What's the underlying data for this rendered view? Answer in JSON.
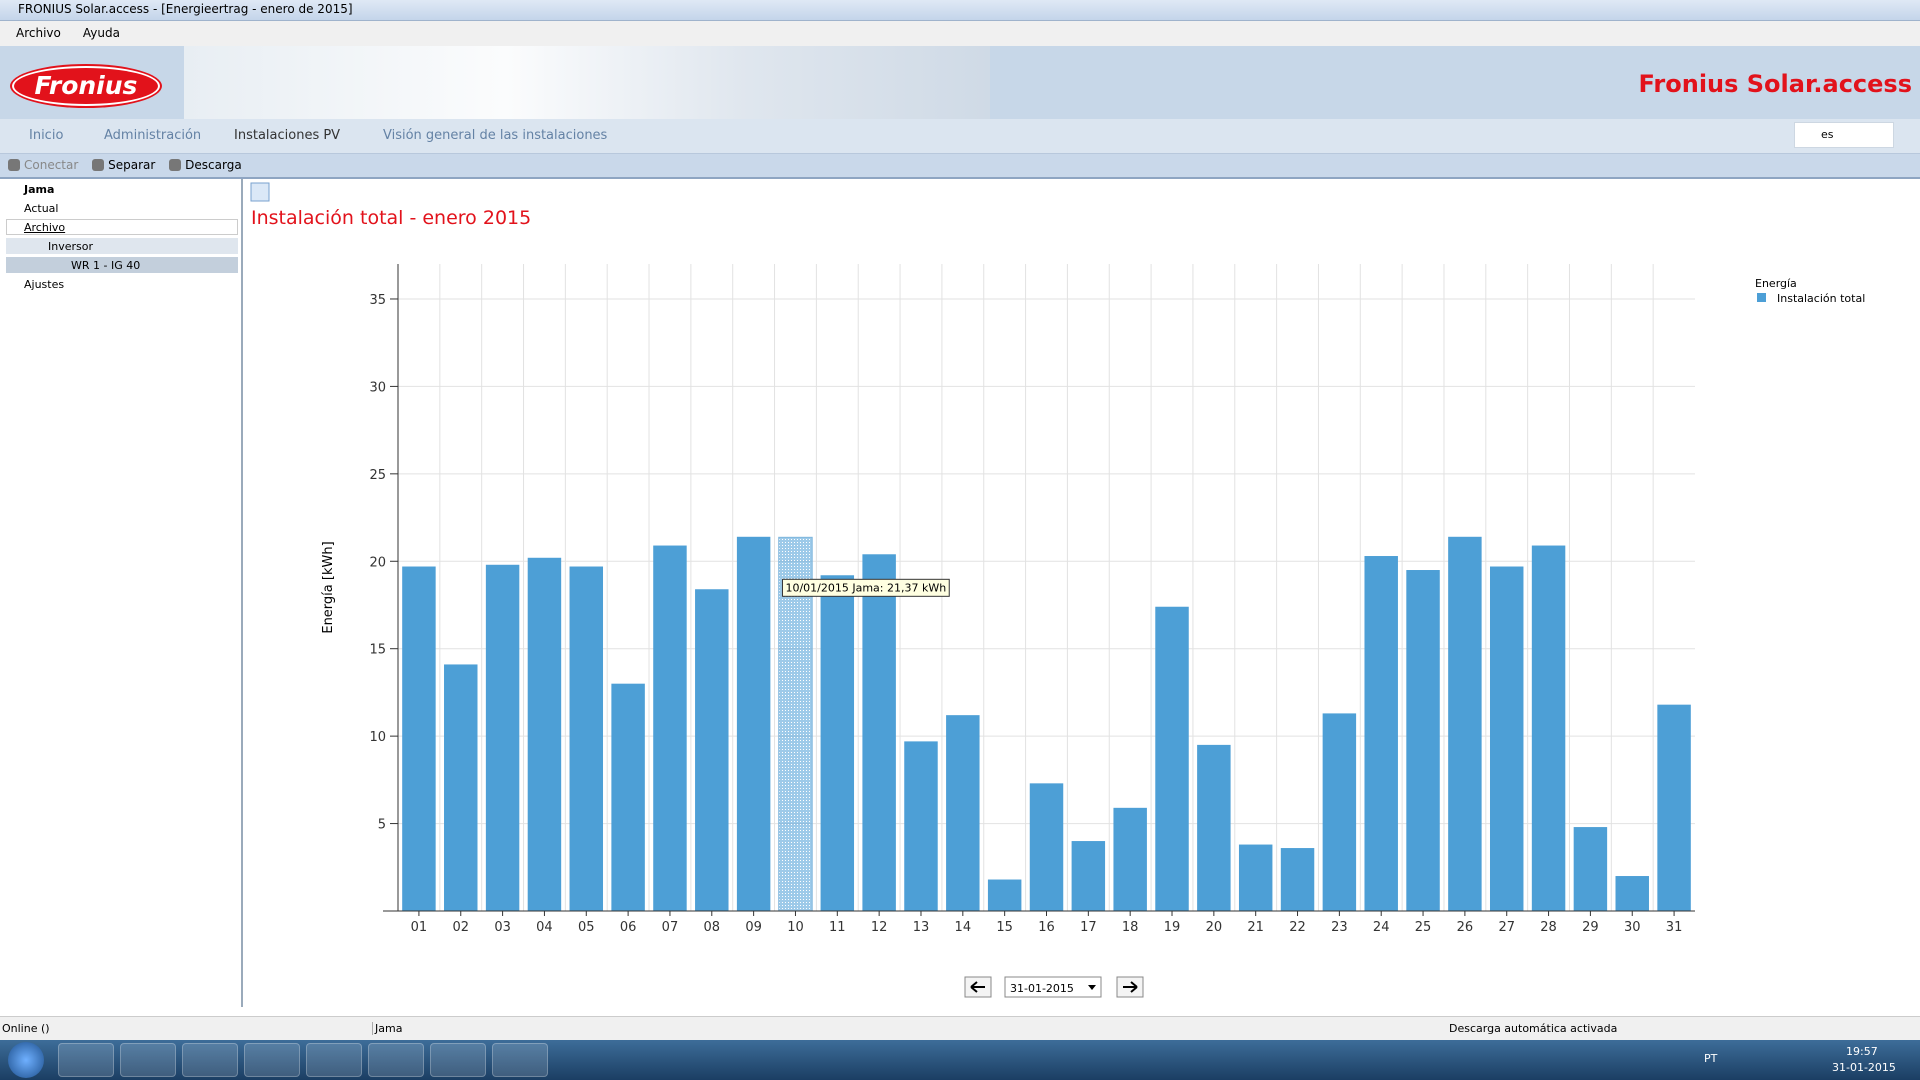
{
  "window": {
    "title": "FRONIUS Solar.access - [Energieertrag - enero de 2015]"
  },
  "menu": [
    "Archivo",
    "Ayuda"
  ],
  "banner": {
    "logo": "Fronius",
    "product": "Fronius Solar.access"
  },
  "nav": [
    "Inicio",
    "Administración",
    "Instalaciones PV",
    "Visión general de las instalaciones"
  ],
  "language": "es",
  "toolbar": [
    "Conectar",
    "Separar",
    "Descarga"
  ],
  "tree": {
    "root": "Jama",
    "items": [
      "Actual",
      "Archivo",
      "Inversor",
      "WR 1 - IG 40",
      "Ajustes"
    ]
  },
  "chart_data": {
    "type": "bar",
    "title": "Instalación total - enero 2015",
    "y_label": "Energía [kWh]",
    "legend_title": "Energía",
    "categories": [
      "01",
      "02",
      "03",
      "04",
      "05",
      "06",
      "07",
      "08",
      "09",
      "10",
      "11",
      "12",
      "13",
      "14",
      "15",
      "16",
      "17",
      "18",
      "19",
      "20",
      "21",
      "22",
      "23",
      "24",
      "25",
      "26",
      "27",
      "28",
      "29",
      "30",
      "31"
    ],
    "series": [
      {
        "name": "Instalación total",
        "color": "#4d9fd6",
        "values": [
          19.7,
          14.1,
          19.8,
          20.2,
          19.7,
          13.0,
          20.9,
          18.4,
          21.4,
          21.37,
          19.2,
          20.4,
          9.7,
          11.2,
          1.8,
          7.3,
          4.0,
          5.9,
          17.4,
          9.5,
          3.8,
          3.6,
          11.3,
          20.3,
          19.5,
          21.4,
          19.7,
          20.9,
          4.8,
          2.0,
          11.8
        ]
      }
    ],
    "highlight": 9,
    "tooltip": "10/01/2015 Jama: 21,37 kWh",
    "ylim": [
      0,
      37
    ],
    "yticks": [
      5,
      10,
      15,
      20,
      25,
      30,
      35
    ],
    "grid": true
  },
  "date_picker": "31-01-2015",
  "status": [
    "Online ()",
    "Jama",
    "Descarga automática activada"
  ],
  "taskbar": {
    "language": "PT",
    "time": "19:57",
    "date": "31-01-2015"
  }
}
